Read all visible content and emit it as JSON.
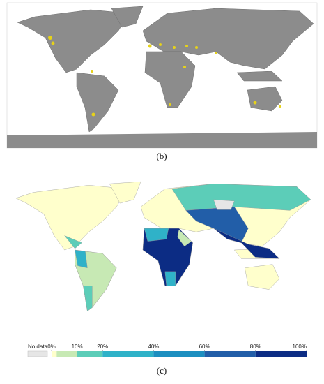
{
  "panels": [
    {
      "caption": "(b)"
    },
    {
      "caption": "(c)",
      "legend": {
        "no_data_label": "No data",
        "no_data_color": "#e6e6e6",
        "range": [
          0,
          100
        ],
        "ticks": [
          {
            "value": 0,
            "label": "0%"
          },
          {
            "value": 10,
            "label": "10%"
          },
          {
            "value": 20,
            "label": "20%"
          },
          {
            "value": 40,
            "label": "40%"
          },
          {
            "value": 60,
            "label": "60%"
          },
          {
            "value": 80,
            "label": "80%"
          },
          {
            "value": 100,
            "label": "100%"
          }
        ],
        "bins": [
          {
            "from": 0,
            "to": 2,
            "color": "#ffffcc"
          },
          {
            "from": 2,
            "to": 10,
            "color": "#c7e9b4"
          },
          {
            "from": 10,
            "to": 20,
            "color": "#5ccdb8"
          },
          {
            "from": 20,
            "to": 40,
            "color": "#2fb2c8"
          },
          {
            "from": 40,
            "to": 60,
            "color": "#1d8fc0"
          },
          {
            "from": 60,
            "to": 80,
            "color": "#225ea8"
          },
          {
            "from": 80,
            "to": 100,
            "color": "#0c2c84"
          }
        ]
      }
    }
  ]
}
